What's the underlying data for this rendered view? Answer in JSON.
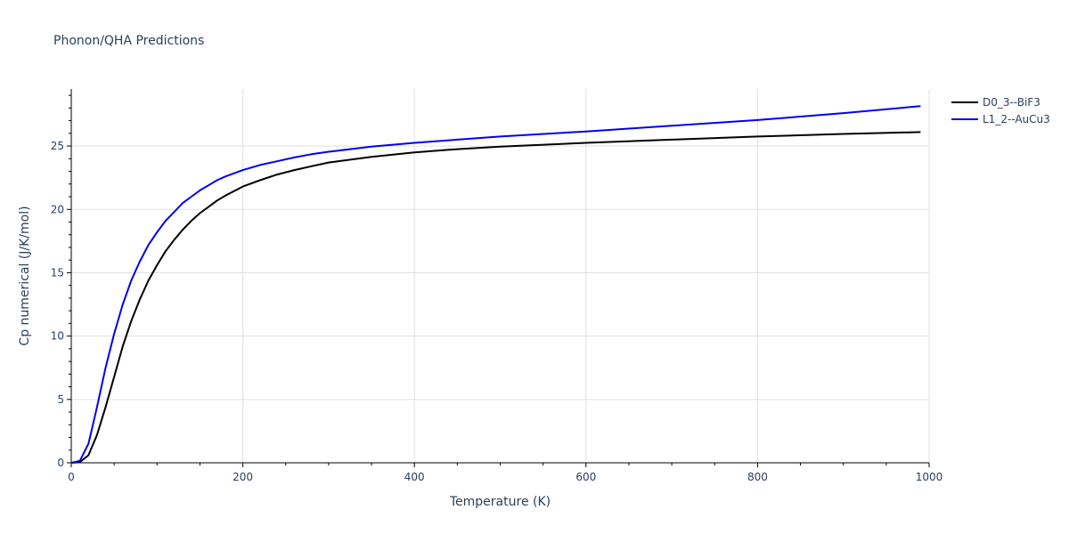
{
  "chart_data": {
    "type": "line",
    "title": "Phonon/QHA Predictions",
    "xlabel": "Temperature (K)",
    "ylabel": "Cp numerical (J/K/mol)",
    "xlim": [
      0,
      1000
    ],
    "ylim": [
      0,
      29.5
    ],
    "xticks": [
      0,
      200,
      400,
      600,
      800,
      1000
    ],
    "yticks": [
      0,
      5,
      10,
      15,
      20,
      25
    ],
    "grid": true,
    "legend_position": "top-right",
    "series": [
      {
        "name": "D0_3--BiF3",
        "color": "#000000",
        "x": [
          0,
          10,
          20,
          30,
          40,
          50,
          60,
          70,
          80,
          90,
          100,
          110,
          120,
          130,
          140,
          150,
          160,
          170,
          180,
          200,
          220,
          240,
          260,
          280,
          300,
          350,
          400,
          450,
          500,
          600,
          700,
          800,
          900,
          990
        ],
        "y": [
          0,
          0.05,
          0.6,
          2.2,
          4.4,
          6.8,
          9.2,
          11.2,
          12.9,
          14.4,
          15.6,
          16.7,
          17.6,
          18.4,
          19.1,
          19.7,
          20.2,
          20.7,
          21.1,
          21.8,
          22.3,
          22.75,
          23.1,
          23.4,
          23.7,
          24.15,
          24.5,
          24.75,
          24.95,
          25.25,
          25.5,
          25.75,
          25.95,
          26.1
        ]
      },
      {
        "name": "L1_2--AuCu3",
        "color": "#0000ee",
        "x": [
          0,
          10,
          20,
          30,
          40,
          50,
          60,
          70,
          80,
          90,
          100,
          110,
          120,
          130,
          140,
          150,
          160,
          170,
          180,
          200,
          220,
          240,
          260,
          280,
          300,
          350,
          400,
          450,
          500,
          600,
          700,
          800,
          900,
          990
        ],
        "y": [
          0,
          0.15,
          1.5,
          4.4,
          7.5,
          10.2,
          12.5,
          14.4,
          15.9,
          17.2,
          18.2,
          19.1,
          19.8,
          20.5,
          21.0,
          21.5,
          21.9,
          22.3,
          22.6,
          23.1,
          23.5,
          23.8,
          24.1,
          24.35,
          24.55,
          24.95,
          25.25,
          25.5,
          25.75,
          26.15,
          26.6,
          27.05,
          27.6,
          28.15
        ]
      }
    ]
  }
}
